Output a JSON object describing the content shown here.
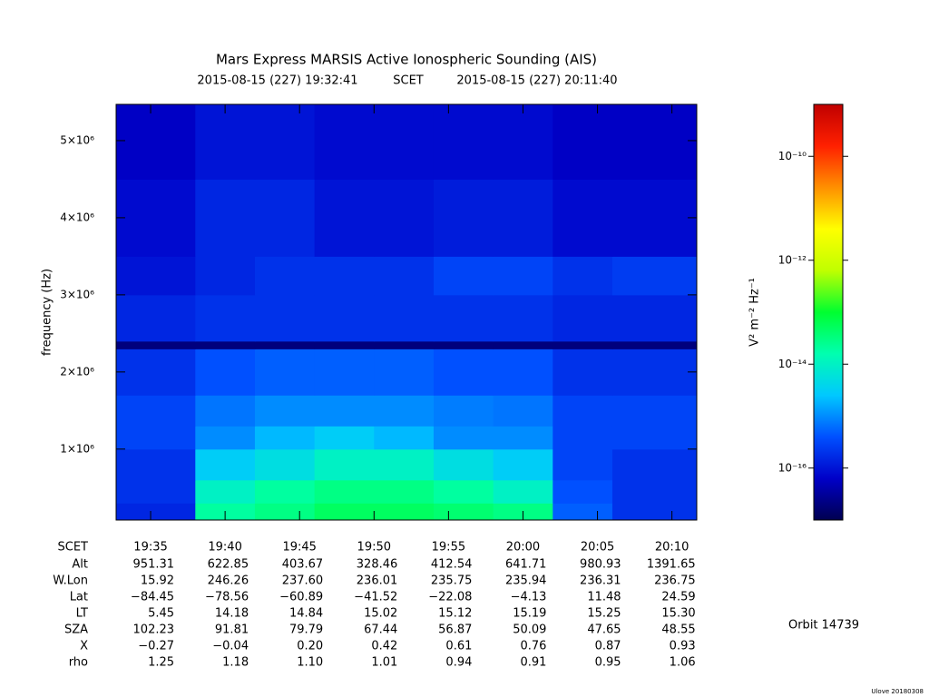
{
  "chart_data": {
    "type": "spectrogram",
    "title": "Mars Express MARSIS Active Ionospheric Sounding (AIS)",
    "subtitle_start": "2015-08-15 (227) 19:32:41",
    "subtitle_mid": "SCET",
    "subtitle_end": "2015-08-15 (227) 20:11:40",
    "xlabel": "SCET",
    "ylabel": "frequency (Hz)",
    "xlim": [
      "19:32:41",
      "20:11:40"
    ],
    "xticks": [
      "19:35",
      "19:40",
      "19:45",
      "19:50",
      "19:55",
      "20:00",
      "20:05",
      "20:10"
    ],
    "ylim": [
      80000,
      5470000
    ],
    "yticks": [
      {
        "value": 1000000,
        "label": "1×10⁶"
      },
      {
        "value": 2000000,
        "label": "2×10⁶"
      },
      {
        "value": 3000000,
        "label": "3×10⁶"
      },
      {
        "value": 4000000,
        "label": "4×10⁶"
      },
      {
        "value": 5000000,
        "label": "5×10⁶"
      }
    ],
    "time_bins": [
      "19:32:41",
      "19:38:00",
      "19:42:00",
      "19:46:00",
      "19:50:00",
      "19:54:00",
      "19:58:00",
      "20:02:00",
      "20:06:00",
      "20:11:40"
    ],
    "frequency_bins": [
      80000,
      300000,
      600000,
      1000000,
      1300000,
      1700000,
      2300000,
      2400000,
      3000000,
      3500000,
      4500000,
      5470000
    ],
    "z": [
      [
        1.5e-16,
        2e-14,
        3e-14,
        5e-14,
        5e-14,
        4e-14,
        3e-14,
        5e-16,
        2e-16
      ],
      [
        2e-16,
        1e-14,
        2e-14,
        3e-14,
        3e-14,
        2e-14,
        1e-14,
        4e-16,
        2e-16
      ],
      [
        2e-16,
        3e-15,
        5e-15,
        1e-14,
        1e-14,
        5e-15,
        3e-15,
        3e-16,
        2e-16
      ],
      [
        3e-16,
        1e-15,
        2e-15,
        3e-15,
        2e-15,
        1e-15,
        1e-15,
        3e-16,
        3e-16
      ],
      [
        3e-16,
        7e-16,
        1e-15,
        1e-15,
        1e-15,
        8e-16,
        7e-16,
        3e-16,
        3e-16
      ],
      [
        2e-16,
        4e-16,
        5e-16,
        5e-16,
        5e-16,
        4e-16,
        4e-16,
        2e-16,
        2e-16
      ],
      [
        2e-17,
        2e-17,
        2e-17,
        2e-17,
        2e-17,
        2e-17,
        2e-17,
        2e-17,
        2e-17
      ],
      [
        1.5e-16,
        2e-16,
        2e-16,
        2e-16,
        2e-16,
        2e-16,
        2e-16,
        1.5e-16,
        1.5e-16
      ],
      [
        1e-16,
        1.5e-16,
        2e-16,
        2e-16,
        2e-16,
        3e-16,
        3e-16,
        2e-16,
        2.5e-16
      ],
      [
        8e-17,
        1.5e-16,
        1.5e-16,
        1e-16,
        1e-16,
        1.2e-16,
        1.2e-16,
        8e-17,
        8e-17
      ],
      [
        6e-17,
        1e-16,
        1e-16,
        8e-17,
        8e-17,
        8e-17,
        8e-17,
        6e-17,
        6e-17
      ]
    ],
    "colorbar_label": "V² m⁻² Hz⁻¹",
    "clim": [
      1e-17,
      1e-09
    ],
    "clog": true,
    "cticks": [
      {
        "value": 1e-16,
        "label": "10⁻¹⁶"
      },
      {
        "value": 1e-14,
        "label": "10⁻¹⁴"
      },
      {
        "value": 1e-12,
        "label": "10⁻¹²"
      },
      {
        "value": 1e-10,
        "label": "10⁻¹⁰"
      }
    ],
    "colorscale": [
      "#000050",
      "#0000c8",
      "#0050ff",
      "#00c8ff",
      "#00ffb0",
      "#00ff30",
      "#c0ff00",
      "#ffff00",
      "#ff9000",
      "#ff2000",
      "#c00000"
    ],
    "table": [
      {
        "label": "Alt",
        "values": [
          "951.31",
          "622.85",
          "403.67",
          "328.46",
          "412.54",
          "641.71",
          "980.93",
          "1391.65"
        ]
      },
      {
        "label": "W.Lon",
        "values": [
          "15.92",
          "246.26",
          "237.60",
          "236.01",
          "235.75",
          "235.94",
          "236.31",
          "236.75"
        ]
      },
      {
        "label": "Lat",
        "values": [
          "−84.45",
          "−78.56",
          "−60.89",
          "−41.52",
          "−22.08",
          "−4.13",
          "11.48",
          "24.59"
        ]
      },
      {
        "label": "LT",
        "values": [
          "5.45",
          "14.18",
          "14.84",
          "15.02",
          "15.12",
          "15.19",
          "15.25",
          "15.30"
        ]
      },
      {
        "label": "SZA",
        "values": [
          "102.23",
          "91.81",
          "79.79",
          "67.44",
          "56.87",
          "50.09",
          "47.65",
          "48.55"
        ]
      },
      {
        "label": "X",
        "values": [
          "−0.27",
          "−0.04",
          "0.20",
          "0.42",
          "0.61",
          "0.76",
          "0.87",
          "0.93"
        ]
      },
      {
        "label": "rho",
        "values": [
          "1.25",
          "1.18",
          "1.10",
          "1.01",
          "0.94",
          "0.91",
          "0.95",
          "1.06"
        ]
      }
    ],
    "orbit": "Orbit 14739",
    "footer": "Ulove 20180308"
  }
}
